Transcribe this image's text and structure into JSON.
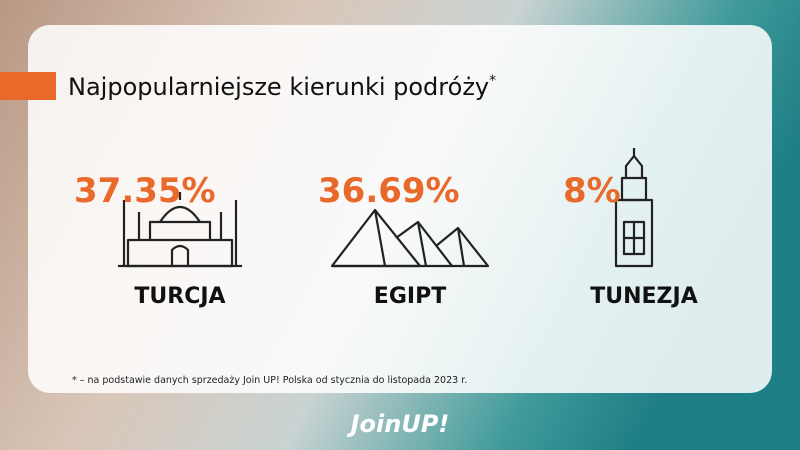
{
  "header": {
    "title": "Najpopularniejsze kierunki podróży",
    "title_mark": "*"
  },
  "items": [
    {
      "value": "37.35%",
      "label": "TURCJA"
    },
    {
      "value": "36.69%",
      "label": "EGIPT"
    },
    {
      "value": "8%",
      "label": "TUNEZJA"
    }
  ],
  "footnote": "* – na podstawie danych sprzedaży Join UP! Polska od stycznia do listopada 2023 r.",
  "logo": "JoinUP!"
}
